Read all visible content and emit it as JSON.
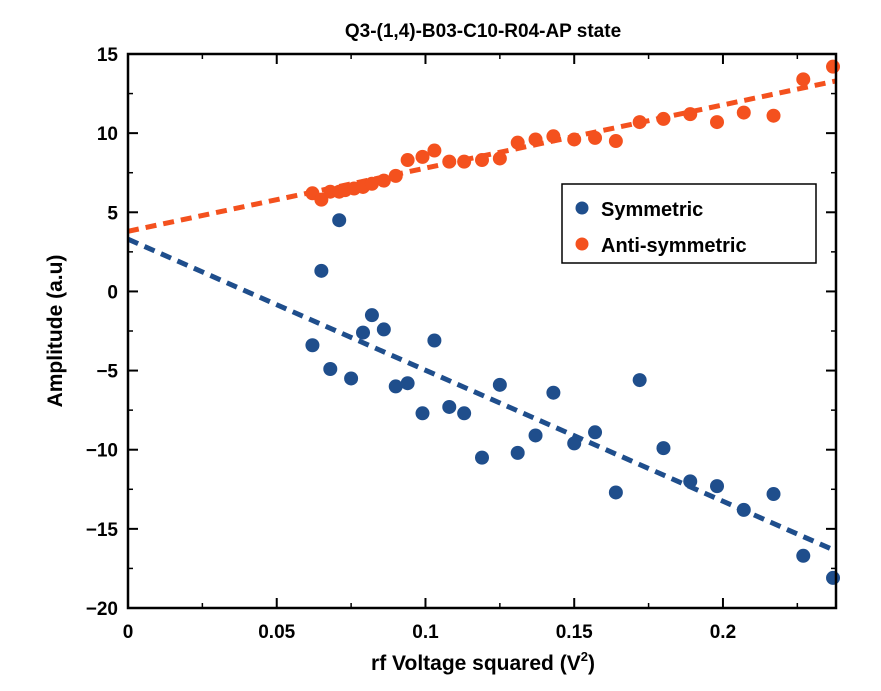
{
  "chart_data": {
    "type": "scatter",
    "title": "Q3-(1,4)-B03-C10-R04-AP state",
    "xlabel": "rf Voltage squared (V",
    "xlabel_sup": "2",
    "xlabel_end": ")",
    "ylabel": "Amplitude (a.u)",
    "xlim": [
      0,
      0.238
    ],
    "ylim": [
      -20,
      15
    ],
    "xticks": [
      0,
      0.05,
      0.1,
      0.15,
      0.2
    ],
    "xtick_labels": [
      "0",
      "0.05",
      "0.1",
      "0.15",
      "0.2"
    ],
    "yticks": [
      15,
      10,
      5,
      0,
      -5,
      -10,
      -15,
      -20
    ],
    "ytick_labels": [
      "15",
      "10",
      "5",
      "0",
      "−5",
      "−10",
      "−15",
      "−20"
    ],
    "legend_position": "right",
    "series": [
      {
        "name": "Symmetric",
        "color": "#1f4e8c",
        "x": [
          0.062,
          0.065,
          0.068,
          0.071,
          0.075,
          0.079,
          0.082,
          0.086,
          0.09,
          0.094,
          0.099,
          0.103,
          0.108,
          0.113,
          0.119,
          0.125,
          0.131,
          0.137,
          0.143,
          0.15,
          0.157,
          0.164,
          0.172,
          0.18,
          0.189,
          0.198,
          0.207,
          0.217,
          0.227,
          0.237
        ],
        "y": [
          -3.4,
          1.3,
          -4.9,
          4.5,
          -5.5,
          -2.6,
          -1.5,
          -2.4,
          -6.0,
          -5.8,
          -7.7,
          -3.1,
          -7.3,
          -7.7,
          -10.5,
          -5.9,
          -10.2,
          -9.1,
          -6.4,
          -9.6,
          -8.9,
          -12.7,
          -5.6,
          -9.9,
          -12.0,
          -12.3,
          -13.8,
          -12.8,
          -16.7,
          -18.1
        ]
      },
      {
        "name": "Anti-symmetric",
        "color": "#f4511e",
        "x": [
          0.062,
          0.065,
          0.068,
          0.071,
          0.073,
          0.076,
          0.079,
          0.082,
          0.086,
          0.09,
          0.094,
          0.099,
          0.103,
          0.108,
          0.113,
          0.119,
          0.125,
          0.131,
          0.137,
          0.143,
          0.15,
          0.157,
          0.164,
          0.172,
          0.18,
          0.189,
          0.198,
          0.207,
          0.217,
          0.227,
          0.237
        ],
        "y": [
          6.2,
          5.8,
          6.3,
          6.3,
          6.4,
          6.5,
          6.6,
          6.8,
          7.0,
          7.3,
          8.3,
          8.5,
          8.9,
          8.2,
          8.2,
          8.3,
          8.4,
          9.4,
          9.6,
          9.8,
          9.6,
          9.7,
          9.5,
          10.7,
          10.9,
          11.2,
          10.7,
          11.3,
          11.1,
          13.4,
          14.2
        ]
      }
    ],
    "fits": [
      {
        "series": "Symmetric",
        "color": "#1f4e8c",
        "x": [
          0,
          0.238
        ],
        "y": [
          3.3,
          -16.4
        ]
      },
      {
        "series": "Anti-symmetric",
        "color": "#f4511e",
        "x": [
          0,
          0.238
        ],
        "y": [
          3.8,
          13.3
        ]
      }
    ]
  }
}
